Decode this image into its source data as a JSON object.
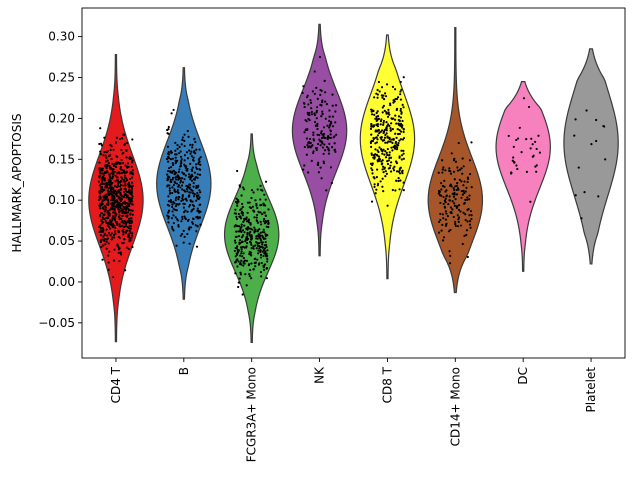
{
  "chart_data": {
    "type": "violin",
    "title": "",
    "xlabel": "",
    "ylabel": "HALLMARK_APOPTOSIS",
    "ylim": [
      -0.093,
      0.335
    ],
    "yticks": [
      -0.05,
      0.0,
      0.05,
      0.1,
      0.15,
      0.2,
      0.25,
      0.3
    ],
    "ytick_labels": [
      "−0.05",
      "0.00",
      "0.05",
      "0.10",
      "0.15",
      "0.20",
      "0.25",
      "0.30"
    ],
    "grid": false,
    "legend": "none",
    "categories": [
      "CD4 T",
      "B",
      "FCGR3A+ Mono",
      "NK",
      "CD8 T",
      "CD14+ Mono",
      "DC",
      "Platelet"
    ],
    "violins": [
      {
        "category": "CD4 T",
        "color": "#e41a1c",
        "n_points": 700,
        "min": -0.073,
        "max": 0.278,
        "median": 0.1,
        "mode": 0.1,
        "spread": 0.055
      },
      {
        "category": "B",
        "color": "#377eb8",
        "n_points": 340,
        "min": -0.021,
        "max": 0.262,
        "median": 0.108,
        "mode": 0.12,
        "spread": 0.052
      },
      {
        "category": "FCGR3A+ Mono",
        "color": "#4daf4a",
        "n_points": 330,
        "min": -0.074,
        "max": 0.181,
        "median": 0.055,
        "mode": 0.058,
        "spread": 0.045
      },
      {
        "category": "NK",
        "color": "#984ea3",
        "n_points": 160,
        "min": 0.032,
        "max": 0.315,
        "median": 0.18,
        "mode": 0.185,
        "spread": 0.05
      },
      {
        "category": "CD8 T",
        "color": "#ffff33",
        "n_points": 310,
        "min": 0.004,
        "max": 0.302,
        "median": 0.16,
        "mode": 0.175,
        "spread": 0.055
      },
      {
        "category": "CD14+ Mono",
        "color": "#a65628",
        "n_points": 160,
        "min": -0.013,
        "max": 0.311,
        "median": 0.11,
        "mode": 0.1,
        "spread": 0.052
      },
      {
        "category": "DC",
        "color": "#f781bf",
        "n_points": 32,
        "min": 0.013,
        "max": 0.245,
        "median": 0.16,
        "mode": 0.165,
        "spread": 0.05
      },
      {
        "category": "Platelet",
        "color": "#999999",
        "n_points": 14,
        "min": 0.022,
        "max": 0.285,
        "median": 0.165,
        "mode": 0.17,
        "spread": 0.065
      }
    ]
  }
}
